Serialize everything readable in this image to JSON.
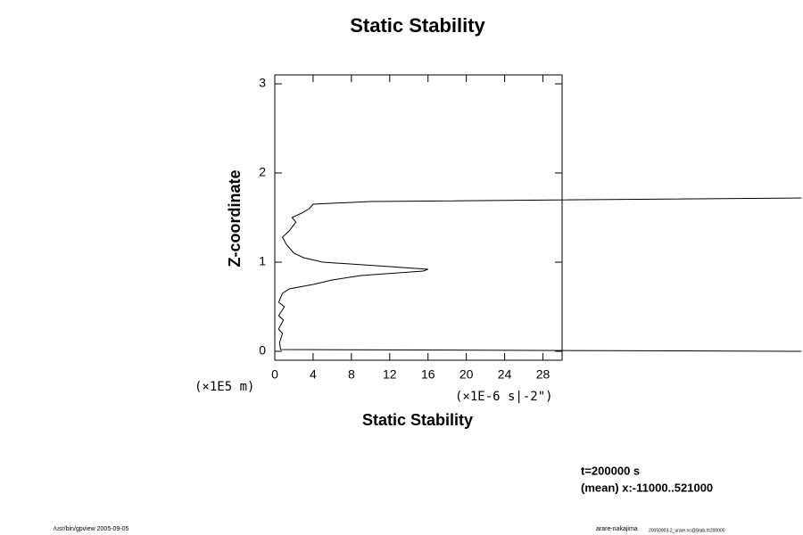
{
  "chart_data": {
    "type": "line",
    "title": "Static Stability",
    "x_label": "Static Stability",
    "y_label": "Z-coordinate",
    "x_units": "(×1E-6 s|-2\")",
    "y_units": "(×1E5 m)",
    "notes": [
      "t=200000 s",
      "(mean) x:-11000..521000"
    ],
    "footer_left": "/usr/bin/gpview 2005-09-05",
    "footer_right": "arare-nakajima",
    "footer_right_small": "20050903-2_arare.nc@Stab,t=200000",
    "xlim": [
      0,
      30
    ],
    "ylim": [
      -0.1,
      3.1
    ],
    "xticks": [
      0,
      4,
      8,
      12,
      16,
      20,
      24,
      28
    ],
    "yticks": [
      0,
      1,
      2,
      3
    ],
    "series": [
      {
        "color": "#000000",
        "x": [
          55,
          0.6,
          0.5,
          0.8,
          0.4,
          0.9,
          0.4,
          1.0,
          0.4,
          0.8,
          1.5,
          4,
          6,
          9,
          15.5,
          16,
          12,
          5,
          3,
          2,
          1.2,
          0.8,
          1.5,
          2.2,
          1.8,
          2.8,
          3.6,
          4,
          10,
          55
        ],
        "values": [
          0.0,
          0.02,
          0.1,
          0.2,
          0.25,
          0.35,
          0.4,
          0.5,
          0.55,
          0.65,
          0.7,
          0.75,
          0.8,
          0.85,
          0.9,
          0.92,
          0.95,
          1.0,
          1.05,
          1.1,
          1.2,
          1.28,
          1.35,
          1.45,
          1.5,
          1.55,
          1.6,
          1.65,
          1.68,
          1.72
        ]
      }
    ]
  }
}
